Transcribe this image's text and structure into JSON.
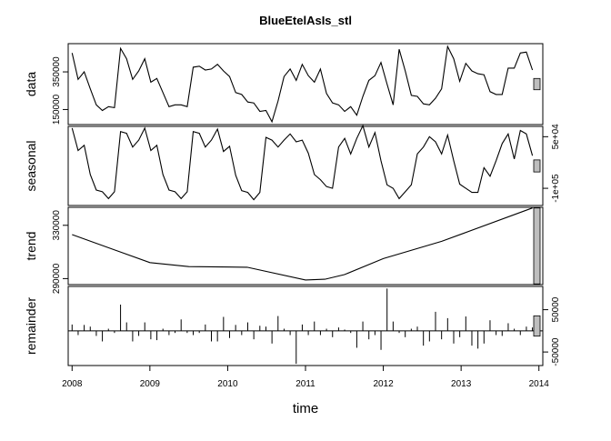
{
  "chart_data": {
    "type": "line",
    "title": "BlueEtelAsIs_stl",
    "xlabel": "time",
    "x_start": 2008.0,
    "x_end": 2013.9167,
    "xlim": [
      2007.95,
      2014.05
    ],
    "x_ticks": [
      2008,
      2009,
      2010,
      2011,
      2012,
      2013,
      2014
    ],
    "x_tick_labels": [
      "2008",
      "2009",
      "2010",
      "2011",
      "2012",
      "2013",
      "2014"
    ],
    "panels": [
      {
        "name": "data",
        "ylabel": "data",
        "y_axis_side": "left",
        "ylim": [
          70000,
          500000
        ],
        "y_ticks": [
          150000,
          350000
        ],
        "y_tick_labels": [
          "150000",
          "350000"
        ],
        "values": [
          450000,
          310000,
          350000,
          260000,
          175000,
          145000,
          165000,
          160000,
          475000,
          420000,
          310000,
          355000,
          420000,
          295000,
          315000,
          240000,
          165000,
          175000,
          175000,
          165000,
          375000,
          380000,
          360000,
          365000,
          390000,
          355000,
          325000,
          240000,
          230000,
          190000,
          185000,
          140000,
          145000,
          85000,
          195000,
          325000,
          365000,
          305000,
          390000,
          330000,
          295000,
          365000,
          235000,
          185000,
          175000,
          140000,
          165000,
          120000,
          220000,
          305000,
          330000,
          400000,
          285000,
          175000,
          470000,
          355000,
          225000,
          220000,
          180000,
          175000,
          210000,
          260000,
          485000,
          420000,
          300000,
          395000,
          355000,
          340000,
          335000,
          245000,
          230000,
          230000,
          370000,
          370000,
          450000,
          455000,
          360000
        ],
        "scale_bar_height": 60000
      },
      {
        "name": "seasonal",
        "ylabel": "seasonal",
        "y_axis_side": "right",
        "ylim": [
          -150000,
          80000
        ],
        "y_ticks": [
          -100000,
          50000
        ],
        "y_tick_labels": [
          "-1e+05",
          "5e+04"
        ],
        "values": [
          75000,
          10000,
          25000,
          -60000,
          -105000,
          -110000,
          -130000,
          -110000,
          65000,
          60000,
          20000,
          40000,
          75000,
          10000,
          25000,
          -60000,
          -105000,
          -110000,
          -130000,
          -110000,
          65000,
          60000,
          20000,
          40000,
          72000,
          7000,
          22000,
          -62000,
          -107000,
          -112000,
          -133000,
          -112000,
          48000,
          40000,
          20000,
          40000,
          58000,
          35000,
          40000,
          2000,
          -60000,
          -75000,
          -95000,
          -100000,
          20000,
          45000,
          0,
          45000,
          82000,
          20000,
          62000,
          -20000,
          -90000,
          -100000,
          -130000,
          -110000,
          -90000,
          0,
          20000,
          50000,
          35000,
          0,
          55000,
          -20000,
          -88000,
          -100000,
          -112000,
          -112000,
          -40000,
          -65000,
          -20000,
          30000,
          58000,
          -15000,
          68000,
          58000,
          -5000
        ],
        "scale_bar_height": 35000
      },
      {
        "name": "trend",
        "ylabel": "trend",
        "y_axis_side": "left",
        "ylim": [
          285500,
          343500
        ],
        "y_ticks": [
          290000,
          330000
        ],
        "y_tick_labels": [
          "290000",
          "330000"
        ],
        "x": [
          2008.0,
          2009.0,
          2009.5,
          2010.25,
          2011.0,
          2011.25,
          2011.5,
          2012.0,
          2012.75,
          2013.9167
        ],
        "values": [
          323000,
          302000,
          299000,
          298500,
          289000,
          289500,
          293000,
          305000,
          318000,
          343000
        ],
        "scale_bar_height": 57000
      },
      {
        "name": "remainder",
        "ylabel": "remainder",
        "y_axis_side": "right",
        "ylim": [
          -82000,
          105000
        ],
        "y_ticks": [
          -50000,
          50000
        ],
        "y_tick_labels": [
          "-50000",
          "50000"
        ],
        "type": "bars",
        "values": [
          15000,
          -10000,
          14000,
          10000,
          -12000,
          -25000,
          5000,
          -5000,
          62000,
          20000,
          -25000,
          -12000,
          20000,
          -20000,
          -22000,
          5000,
          -10000,
          -5000,
          27000,
          -5000,
          -10000,
          -5000,
          15000,
          -25000,
          -25000,
          33000,
          -17000,
          14000,
          -10000,
          20000,
          -20000,
          12000,
          10000,
          -30000,
          35000,
          5000,
          -10000,
          -78000,
          15000,
          -10000,
          22000,
          -10000,
          5000,
          -15000,
          8000,
          3000,
          -5000,
          -40000,
          22000,
          -20000,
          -10000,
          -45000,
          100000,
          22000,
          -5000,
          -15000,
          5000,
          10000,
          -35000,
          -25000,
          45000,
          -20000,
          30000,
          -30000,
          -15000,
          34000,
          -35000,
          -42000,
          -30000,
          25000,
          -10000,
          -12000,
          18000,
          5000,
          -10000,
          10000,
          8000
        ],
        "scale_bar_height": 48000
      }
    ]
  }
}
